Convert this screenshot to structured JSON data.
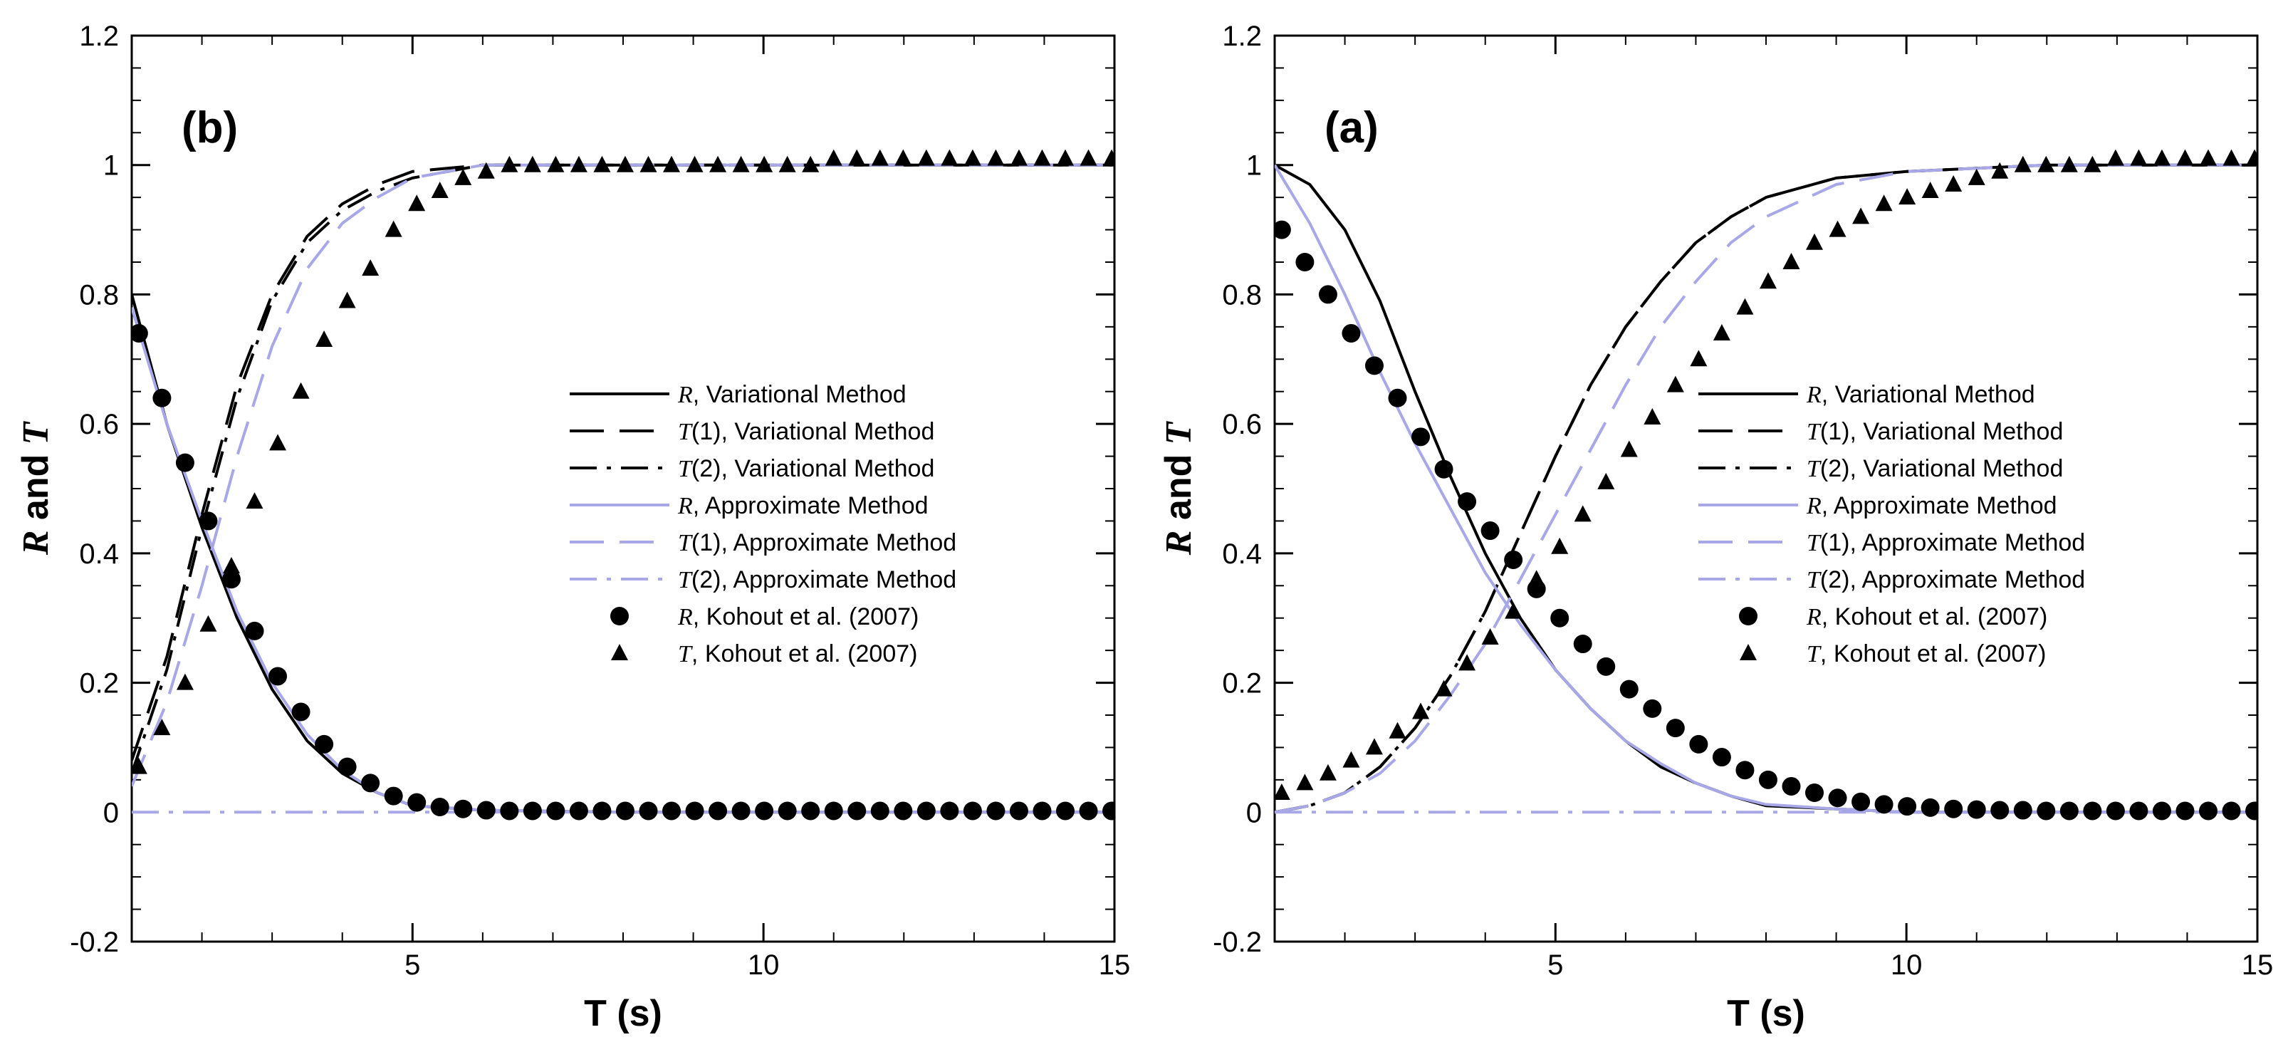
{
  "colors": {
    "black": "#000000",
    "approx": "#a8a8e8"
  },
  "legend_entries": [
    {
      "var": "R",
      "text": ", Variational Method",
      "color": "#000000",
      "kind": "line",
      "dash": "solid"
    },
    {
      "var": "T",
      "suffix": "(1)",
      "text": ", Variational Method",
      "color": "#000000",
      "kind": "line",
      "dash": "long"
    },
    {
      "var": "T",
      "suffix": "(2)",
      "text": ", Variational Method",
      "color": "#000000",
      "kind": "line",
      "dash": "dashdot"
    },
    {
      "var": "R",
      "text": ", Approximate Method",
      "color": "#a8a8e8",
      "kind": "line",
      "dash": "solid"
    },
    {
      "var": "T",
      "suffix": "(1)",
      "text": ", Approximate Method",
      "color": "#a8a8e8",
      "kind": "line",
      "dash": "long"
    },
    {
      "var": "T",
      "suffix": "(2)",
      "text": ", Approximate Method",
      "color": "#a8a8e8",
      "kind": "line",
      "dash": "dashdot"
    },
    {
      "var": "R",
      "text": ", Kohout et al. (2007)",
      "color": "#000000",
      "kind": "circle"
    },
    {
      "var": "T",
      "text": ", Kohout et al. (2007)",
      "color": "#000000",
      "kind": "triangle"
    }
  ],
  "chart_data": [
    {
      "panel_label": "(b)",
      "type": "line",
      "xlabel": "T (s)",
      "ylabel": "R and T",
      "xlim": [
        1,
        15
      ],
      "ylim": [
        -0.2,
        1.2
      ],
      "xticks": [
        5,
        10,
        15
      ],
      "yticks": [
        -0.2,
        0,
        0.2,
        0.4,
        0.6,
        0.8,
        1,
        1.2
      ],
      "ytick_labels": [
        "-0.2",
        "0",
        "0.2",
        "0.4",
        "0.6",
        "0.8",
        "1",
        "1.2"
      ],
      "series": [
        {
          "name": "R, Variational Method",
          "x": [
            1,
            1.5,
            2,
            2.5,
            3,
            3.5,
            4,
            4.5,
            5,
            6,
            8,
            10,
            15
          ],
          "values": [
            0.8,
            0.6,
            0.44,
            0.3,
            0.19,
            0.11,
            0.06,
            0.03,
            0.01,
            0.003,
            0,
            0,
            0
          ]
        },
        {
          "name": "T(1), Variational Method",
          "x": [
            1,
            1.5,
            2,
            2.5,
            3,
            3.5,
            4,
            4.5,
            5,
            6,
            8,
            10,
            15
          ],
          "values": [
            0.08,
            0.24,
            0.46,
            0.66,
            0.8,
            0.89,
            0.94,
            0.97,
            0.99,
            1,
            1,
            1,
            1
          ]
        },
        {
          "name": "T(2), Variational Method",
          "x": [
            1,
            1.5,
            2,
            2.5,
            3,
            3.5,
            4,
            4.5,
            5,
            6,
            8,
            10,
            15
          ],
          "values": [
            0.06,
            0.22,
            0.44,
            0.64,
            0.79,
            0.88,
            0.93,
            0.96,
            0.98,
            1,
            1,
            1,
            1
          ]
        },
        {
          "name": "R, Approximate Method",
          "x": [
            1,
            1.5,
            2,
            2.5,
            3,
            3.5,
            4,
            4.5,
            5,
            6,
            8,
            10,
            15
          ],
          "values": [
            0.78,
            0.6,
            0.45,
            0.31,
            0.2,
            0.12,
            0.065,
            0.03,
            0.01,
            0.003,
            0,
            0,
            0
          ]
        },
        {
          "name": "T(1), Approximate Method",
          "x": [
            1,
            1.5,
            2,
            2.5,
            3,
            3.5,
            4,
            4.5,
            5,
            6,
            8,
            10,
            15
          ],
          "values": [
            0.04,
            0.17,
            0.35,
            0.55,
            0.72,
            0.84,
            0.91,
            0.95,
            0.98,
            1,
            1,
            1,
            1
          ]
        },
        {
          "name": "T(2), Approximate Method",
          "x": [
            1,
            2,
            3,
            4,
            5,
            6,
            8,
            10,
            15
          ],
          "values": [
            0,
            0,
            0,
            0,
            0,
            0,
            0,
            0,
            0
          ]
        },
        {
          "name": "R, Kohout et al. (2007)",
          "x": [
            1.1,
            1.43,
            1.76,
            2.09,
            2.42,
            2.75,
            3.08,
            3.41,
            3.74,
            4.07,
            4.4,
            4.73,
            5.06,
            5.39,
            5.72,
            6.05,
            6.38,
            6.71,
            7.04,
            7.37,
            7.7,
            8.03,
            8.36,
            8.69,
            9.02,
            9.35,
            9.68,
            10.01,
            10.34,
            10.67,
            11,
            11.33,
            11.66,
            11.99,
            12.32,
            12.65,
            12.98,
            13.31,
            13.64,
            13.97,
            14.3,
            14.63,
            14.96
          ],
          "values": [
            0.74,
            0.64,
            0.54,
            0.45,
            0.36,
            0.28,
            0.21,
            0.155,
            0.105,
            0.07,
            0.045,
            0.025,
            0.015,
            0.008,
            0.005,
            0.003,
            0.002,
            0.002,
            0.002,
            0.002,
            0.002,
            0.002,
            0.002,
            0.002,
            0.002,
            0.002,
            0.002,
            0.002,
            0.002,
            0.002,
            0.002,
            0.002,
            0.002,
            0.002,
            0.002,
            0.002,
            0.002,
            0.002,
            0.002,
            0.002,
            0.002,
            0.002,
            0.002
          ]
        },
        {
          "name": "T, Kohout et al. (2007)",
          "x": [
            1.1,
            1.43,
            1.76,
            2.09,
            2.42,
            2.75,
            3.08,
            3.41,
            3.74,
            4.07,
            4.4,
            4.73,
            5.06,
            5.39,
            5.72,
            6.05,
            6.38,
            6.71,
            7.04,
            7.37,
            7.7,
            8.03,
            8.36,
            8.69,
            9.02,
            9.35,
            9.68,
            10.01,
            10.34,
            10.67,
            11,
            11.33,
            11.66,
            11.99,
            12.32,
            12.65,
            12.98,
            13.31,
            13.64,
            13.97,
            14.3,
            14.63,
            14.96
          ],
          "values": [
            0.07,
            0.13,
            0.2,
            0.29,
            0.38,
            0.48,
            0.57,
            0.65,
            0.73,
            0.79,
            0.84,
            0.9,
            0.94,
            0.96,
            0.98,
            0.99,
            1,
            1,
            1,
            1,
            1,
            1,
            1,
            1,
            1,
            1,
            1,
            1,
            1,
            1,
            1.01,
            1.01,
            1.01,
            1.01,
            1.01,
            1.01,
            1.01,
            1.01,
            1.01,
            1.01,
            1.01,
            1.01,
            1.01
          ]
        }
      ]
    },
    {
      "panel_label": "(a)",
      "type": "line",
      "xlabel": "T (s)",
      "ylabel": "R and T",
      "xlim": [
        1,
        15
      ],
      "ylim": [
        -0.2,
        1.2
      ],
      "xticks": [
        5,
        10,
        15
      ],
      "yticks": [
        -0.2,
        0,
        0.2,
        0.4,
        0.6,
        0.8,
        1,
        1.2
      ],
      "ytick_labels": [
        "-0.2",
        "0",
        "0.2",
        "0.4",
        "0.6",
        "0.8",
        "1",
        "1.2"
      ],
      "series": [
        {
          "name": "R, Variational Method",
          "x": [
            1,
            1.5,
            2,
            2.5,
            3,
            3.5,
            4,
            4.5,
            5,
            5.5,
            6,
            6.5,
            7,
            7.5,
            8,
            9,
            10,
            12,
            15
          ],
          "values": [
            1,
            0.97,
            0.9,
            0.79,
            0.65,
            0.52,
            0.4,
            0.3,
            0.22,
            0.16,
            0.11,
            0.07,
            0.045,
            0.025,
            0.01,
            0.005,
            0,
            0,
            0
          ]
        },
        {
          "name": "T(1), Variational Method",
          "x": [
            1,
            1.5,
            2,
            2.5,
            3,
            3.5,
            4,
            4.5,
            5,
            5.5,
            6,
            6.5,
            7,
            7.5,
            8,
            9,
            10,
            12,
            15
          ],
          "values": [
            0,
            0.01,
            0.03,
            0.07,
            0.13,
            0.21,
            0.31,
            0.43,
            0.55,
            0.66,
            0.75,
            0.82,
            0.88,
            0.92,
            0.95,
            0.98,
            0.99,
            1,
            1
          ]
        },
        {
          "name": "T(2), Variational Method",
          "x": [
            1,
            1.5,
            2,
            2.5,
            3,
            3.5,
            4,
            4.5,
            5,
            5.5,
            6,
            6.5,
            7,
            7.5,
            8,
            9,
            10,
            12,
            15
          ],
          "values": [
            0,
            0.01,
            0.03,
            0.07,
            0.13,
            0.21,
            0.31,
            0.43,
            0.55,
            0.66,
            0.75,
            0.82,
            0.88,
            0.92,
            0.95,
            0.98,
            0.99,
            1,
            1
          ]
        },
        {
          "name": "R, Approximate Method",
          "x": [
            1,
            1.5,
            2,
            2.5,
            3,
            3.5,
            4,
            4.5,
            5,
            5.5,
            6,
            6.5,
            7,
            7.5,
            8,
            9,
            10,
            12,
            15
          ],
          "values": [
            1,
            0.91,
            0.8,
            0.68,
            0.57,
            0.47,
            0.37,
            0.29,
            0.22,
            0.16,
            0.11,
            0.075,
            0.045,
            0.025,
            0.012,
            0.005,
            0,
            0,
            0
          ]
        },
        {
          "name": "T(1), Approximate Method",
          "x": [
            1,
            1.5,
            2,
            2.5,
            3,
            3.5,
            4,
            4.5,
            5,
            5.5,
            6,
            6.5,
            7,
            7.5,
            8,
            9,
            10,
            12,
            15
          ],
          "values": [
            0,
            0.01,
            0.03,
            0.06,
            0.11,
            0.18,
            0.26,
            0.36,
            0.46,
            0.56,
            0.66,
            0.75,
            0.82,
            0.88,
            0.92,
            0.97,
            0.99,
            1,
            1
          ]
        },
        {
          "name": "T(2), Approximate Method",
          "x": [
            1,
            2,
            4,
            6,
            8,
            10,
            12,
            15
          ],
          "values": [
            0,
            0,
            0,
            0,
            0,
            0,
            0,
            0
          ]
        },
        {
          "name": "R, Kohout et al. (2007)",
          "x": [
            1.1,
            1.43,
            1.76,
            2.09,
            2.42,
            2.75,
            3.08,
            3.41,
            3.74,
            4.07,
            4.4,
            4.73,
            5.06,
            5.39,
            5.72,
            6.05,
            6.38,
            6.71,
            7.04,
            7.37,
            7.7,
            8.03,
            8.36,
            8.69,
            9.02,
            9.35,
            9.68,
            10.01,
            10.34,
            10.67,
            11,
            11.33,
            11.66,
            11.99,
            12.32,
            12.65,
            12.98,
            13.31,
            13.64,
            13.97,
            14.3,
            14.63,
            14.96
          ],
          "values": [
            0.9,
            0.85,
            0.8,
            0.74,
            0.69,
            0.64,
            0.58,
            0.53,
            0.48,
            0.435,
            0.39,
            0.345,
            0.3,
            0.26,
            0.225,
            0.19,
            0.16,
            0.13,
            0.105,
            0.085,
            0.065,
            0.05,
            0.04,
            0.03,
            0.022,
            0.016,
            0.012,
            0.009,
            0.007,
            0.005,
            0.004,
            0.003,
            0.003,
            0.002,
            0.002,
            0.002,
            0.002,
            0.002,
            0.002,
            0.002,
            0.002,
            0.002,
            0.002
          ]
        },
        {
          "name": "T, Kohout et al. (2007)",
          "x": [
            1.1,
            1.43,
            1.76,
            2.09,
            2.42,
            2.75,
            3.08,
            3.41,
            3.74,
            4.07,
            4.4,
            4.73,
            5.06,
            5.39,
            5.72,
            6.05,
            6.38,
            6.71,
            7.04,
            7.37,
            7.7,
            8.03,
            8.36,
            8.69,
            9.02,
            9.35,
            9.68,
            10.01,
            10.34,
            10.67,
            11,
            11.33,
            11.66,
            11.99,
            12.32,
            12.65,
            12.98,
            13.31,
            13.64,
            13.97,
            14.3,
            14.63,
            14.96
          ],
          "values": [
            0.03,
            0.045,
            0.06,
            0.08,
            0.1,
            0.125,
            0.155,
            0.19,
            0.23,
            0.27,
            0.31,
            0.36,
            0.41,
            0.46,
            0.51,
            0.56,
            0.61,
            0.66,
            0.7,
            0.74,
            0.78,
            0.82,
            0.85,
            0.88,
            0.9,
            0.92,
            0.94,
            0.95,
            0.96,
            0.97,
            0.98,
            0.99,
            1,
            1,
            1,
            1,
            1.01,
            1.01,
            1.01,
            1.01,
            1.01,
            1.01,
            1.01
          ]
        }
      ]
    }
  ]
}
